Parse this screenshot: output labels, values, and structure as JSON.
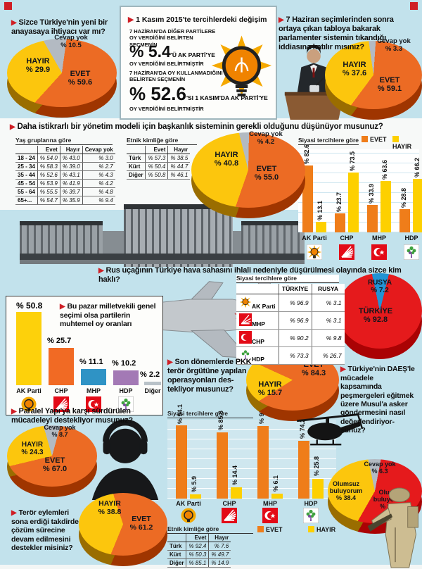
{
  "icons": {
    "bullet": "▶"
  },
  "legend": {
    "evet": "EVET",
    "hayir": "HAYIR"
  },
  "colors": {
    "evet": "#ec6b24",
    "hayir": "#fcc60d",
    "cevap_yok": "#b3bac2",
    "turkiye_red": "#e51a1c",
    "rusya_blue": "#2293d4",
    "bar_evet": "#ef7d1a",
    "bar_hayir": "#fdd000",
    "akp": "#fdd10b",
    "chp": "#f16a24",
    "mhp": "#2f93c5",
    "hdp": "#a379b5",
    "diger": "#b9c2c8"
  },
  "panels": {
    "degisim": {
      "title": "1 Kasım 2015'te tercihlerdeki değişim",
      "line1": "7 HAZİRAN'DA DİĞER PARTİLERE OY VERDİĞİNİ BELİRTEN SEÇMENİN",
      "big1": "% 5.4",
      "suffix1": "'Ü AK PARTİ'YE",
      "line2": "OY VERDİĞİNİ BELİRTMİŞTİR",
      "line3": "7 HAZİRAN'DA OY KULLANMADIĞINI BELİRTEN SEÇMENİN",
      "big2": "% 52.6",
      "suffix2": "'SI 1 KASIM'DA AK PARTİ'YE",
      "line4": "OY VERDİĞİNİ BELİRTMİŞTİR"
    }
  },
  "chart_data": {
    "anayasa_pie": {
      "type": "pie",
      "question": "Sizce Türkiye'nin yeni bir anayasaya ihtiyacı var mı?",
      "slices": [
        {
          "label": "Cevap yok",
          "value": 10.5,
          "display": "% 10.5",
          "color": "#b3bac2"
        },
        {
          "label": "EVET",
          "value": 59.6,
          "display": "% 59.6",
          "color": "#ec6b24"
        },
        {
          "label": "HAYIR",
          "value": 29.9,
          "display": "% 29.9",
          "color": "#fcc60d"
        }
      ]
    },
    "parlamenter_pie": {
      "type": "pie",
      "question": "7 Haziran seçimlerinden sonra ortaya çıkan tabloya bakarak parlamenter sistemin tıkandığı iddiasına katılır mısınız?",
      "slices": [
        {
          "label": "Cevap yok",
          "value": 3.3,
          "display": "% 3.3",
          "color": "#b3bac2"
        },
        {
          "label": "EVET",
          "value": 59.1,
          "display": "% 59.1",
          "color": "#ec6b24"
        },
        {
          "label": "HAYIR",
          "value": 37.6,
          "display": "% 37.6",
          "color": "#fcc60d"
        }
      ]
    },
    "baskanlik_pie": {
      "type": "pie",
      "question": "Daha istikrarlı bir yönetim modeli için başkanlık sisteminin gerekli olduğunu düşünüyor musunuz?",
      "slices": [
        {
          "label": "Cevap yok",
          "value": 4.2,
          "display": "% 4.2",
          "color": "#b3bac2"
        },
        {
          "label": "EVET",
          "value": 55.0,
          "display": "% 55.0",
          "color": "#ec6b24"
        },
        {
          "label": "HAYIR",
          "value": 40.8,
          "display": "% 40.8",
          "color": "#fcc60d"
        }
      ]
    },
    "baskanlik_yas_table": {
      "type": "table",
      "title": "Yaş gruplarına göre",
      "columns": [
        "Evet",
        "Hayır",
        "Cevap yok"
      ],
      "rows": [
        [
          "18 - 24",
          "% 54.0",
          "% 43.0",
          "% 3.0"
        ],
        [
          "25 - 34",
          "% 58.3",
          "% 39.0",
          "% 2.7"
        ],
        [
          "35 - 44",
          "% 52.6",
          "% 43.1",
          "% 4.3"
        ],
        [
          "45 - 54",
          "% 53.9",
          "% 41.9",
          "% 4.2"
        ],
        [
          "55 - 64",
          "% 55.5",
          "% 39.7",
          "% 4.8"
        ],
        [
          "65+...",
          "% 54.7",
          "% 35.9",
          "% 9.4"
        ]
      ]
    },
    "baskanlik_etnik_table": {
      "type": "table",
      "title": "Etnik kimliğe göre",
      "columns": [
        "Evet",
        "Hayır"
      ],
      "rows": [
        [
          "Türk",
          "% 57.3",
          "% 38.5"
        ],
        [
          "Kürt",
          "% 50.4",
          "% 44.7"
        ],
        [
          "Diğer",
          "% 50.8",
          "% 46.1"
        ]
      ]
    },
    "baskanlik_parti_bar": {
      "type": "bar",
      "title": "Siyasi tercihlere göre",
      "categories": [
        "AK Parti",
        "CHP",
        "MHP",
        "HDP"
      ],
      "series": [
        {
          "name": "EVET",
          "color": "#ef7d1a",
          "values": [
            82.6,
            23.7,
            33.9,
            28.8
          ],
          "labels": [
            "% 82.6",
            "% 23.7",
            "% 33.9",
            "% 28.8"
          ]
        },
        {
          "name": "HAYIR",
          "color": "#fdd000",
          "values": [
            13.1,
            73.5,
            63.6,
            66.2
          ],
          "labels": [
            "% 13.1",
            "% 73.5",
            "% 63.6",
            "% 66.2"
          ]
        }
      ]
    },
    "rus_pie": {
      "type": "pie",
      "question": "Rus uçağının Türkiye hava sahasını ihlali nedeniyle düşürülmesi olayında sizce kim haklı?",
      "slices": [
        {
          "label": "RUSYA",
          "value": 7.2,
          "display": "% 7.2",
          "color": "#2293d4"
        },
        {
          "label": "TÜRKİYE",
          "value": 92.8,
          "display": "% 92.8",
          "color": "#e51a1c"
        }
      ]
    },
    "rus_table": {
      "type": "table",
      "title": "Siyasi tercihlere göre",
      "columns": [
        "TÜRKİYE",
        "RUSYA"
      ],
      "rows": [
        [
          "AK Parti",
          "% 96.9",
          "% 3.1"
        ],
        [
          "MHP",
          "% 96.9",
          "% 3.1"
        ],
        [
          "CHP",
          "% 90.2",
          "% 9.8"
        ],
        [
          "HDP",
          "% 73.3",
          "% 26.7"
        ]
      ]
    },
    "oy_bar": {
      "type": "bar",
      "title": "Bu pazar milletvekili genel seçimi olsa partilerin muhtemel oy oranları",
      "categories": [
        "AK Parti",
        "CHP",
        "MHP",
        "HDP",
        "Diğer"
      ],
      "values": [
        50.8,
        25.7,
        11.1,
        10.2,
        2.2
      ],
      "labels": [
        "% 50.8",
        "% 25.7",
        "% 11.1",
        "% 10.2",
        "% 2.2"
      ],
      "colors": [
        "#fdd10b",
        "#f16a24",
        "#2f93c5",
        "#a379b5",
        "#b9c2c8"
      ]
    },
    "pkk_pie": {
      "type": "pie",
      "question": "Son dönemlerde PKK terör örgütüne yapılan operasyonları des-tekliyor musunuz?",
      "slices": [
        {
          "label": "HAYIR",
          "value": 15.7,
          "display": "% 15.7",
          "color": "#fcc60d"
        },
        {
          "label": "EVET",
          "value": 84.3,
          "display": "% 84.3",
          "color": "#ec6b24"
        }
      ]
    },
    "pkk_parti_bar": {
      "type": "bar",
      "title": "Siyasi tercihlere göre",
      "categories": [
        "AK Parti",
        "CHP",
        "MHP",
        "HDP"
      ],
      "series": [
        {
          "name": "EVET",
          "color": "#ef7d1a",
          "values": [
            94.1,
            85.6,
            93.9,
            74.2
          ],
          "labels": [
            "% 94.1",
            "% 85.6",
            "% 93.9",
            "% 74.2"
          ]
        },
        {
          "name": "HAYIR",
          "color": "#fdd000",
          "values": [
            5.9,
            14.4,
            6.1,
            25.8
          ],
          "labels": [
            "% 5.9",
            "% 14.4",
            "% 6.1",
            "% 25.8"
          ]
        }
      ]
    },
    "pkk_etnik_table": {
      "type": "table",
      "title": "Etnik kimliğe göre",
      "columns": [
        "Evet",
        "Hayır"
      ],
      "rows": [
        [
          "Türk",
          "% 92.4",
          "% 7.6"
        ],
        [
          "Kürt",
          "% 50.3",
          "% 49.7"
        ],
        [
          "Diğer",
          "% 85.1",
          "% 14.9"
        ]
      ]
    },
    "daes_pie": {
      "type": "pie",
      "question": "Türkiye'nin DAEŞ'le mücadele kapsamında peşmergeleri eğitmek üzere Musul'a asker göndermesini nasıl değerlendiriyor-sunuz?",
      "slices": [
        {
          "label": "Cevap yok",
          "value": 6.3,
          "display": "% 6.3",
          "color": "#b3bac2"
        },
        {
          "label": "Olumlu buluyorum",
          "value": 55.3,
          "display": "% 55.3",
          "color": "#e51a1c"
        },
        {
          "label": "Olumsuz buluyorum",
          "value": 38.4,
          "display": "% 38.4",
          "color": "#fcc60d"
        }
      ]
    },
    "paralel_pie": {
      "type": "pie",
      "question": "Paralel Yapı'ya karşı sürdürülen mücadeleyi destekliyor musunuz?",
      "slices": [
        {
          "label": "Cevap yok",
          "value": 8.7,
          "display": "% 8.7",
          "color": "#b3bac2"
        },
        {
          "label": "EVET",
          "value": 67.0,
          "display": "% 67.0",
          "color": "#ec6b24"
        },
        {
          "label": "HAYIR",
          "value": 24.3,
          "display": "% 24.3",
          "color": "#fcc60d"
        }
      ]
    },
    "teror_pie": {
      "type": "pie",
      "question": "Terör eylemleri sona erdiği takdirde çözüm sürecine devam edilmesini destekler misiniz?",
      "slices": [
        {
          "label": "EVET",
          "value": 61.2,
          "display": "% 61.2",
          "color": "#ec6b24"
        },
        {
          "label": "HAYIR",
          "value": 38.8,
          "display": "% 38.8",
          "color": "#fcc60d"
        }
      ]
    }
  }
}
